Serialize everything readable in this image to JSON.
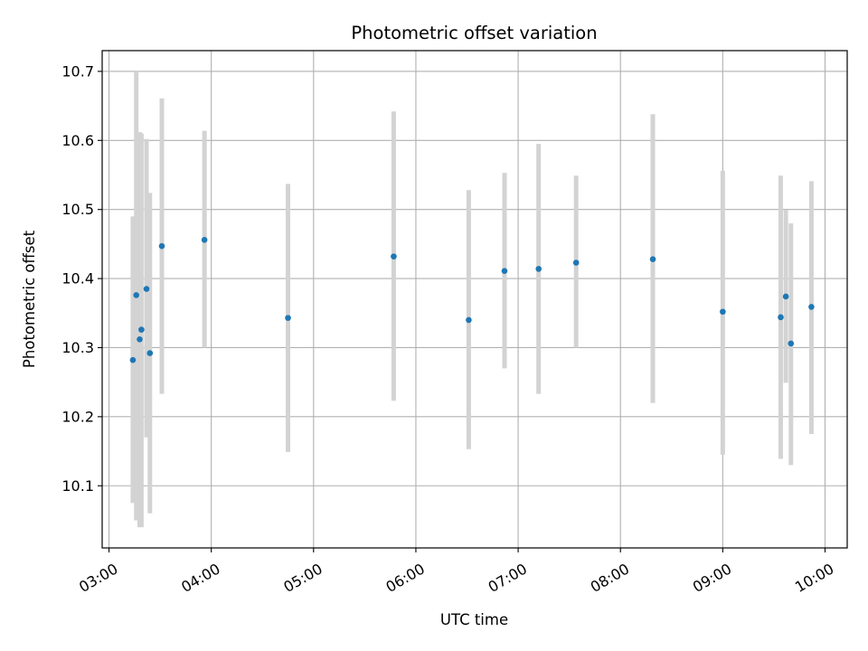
{
  "chart_data": {
    "type": "scatter",
    "title": "Photometric offset variation",
    "xlabel": "UTC time",
    "ylabel": "Photometric offset",
    "x_axis_kind": "time",
    "xlim": [
      "02:56",
      "10:13"
    ],
    "ylim": [
      10.01,
      10.73
    ],
    "x_ticks": [
      "03:00",
      "04:00",
      "05:00",
      "06:00",
      "07:00",
      "08:00",
      "09:00",
      "10:00"
    ],
    "y_ticks": [
      10.1,
      10.2,
      10.3,
      10.4,
      10.5,
      10.6,
      10.7
    ],
    "grid": true,
    "point_color": "#1f77b4",
    "errorbar_color": "#d3d3d3",
    "points": [
      {
        "time": "03:14",
        "y": 10.282,
        "low": 10.075,
        "high": 10.49
      },
      {
        "time": "03:16",
        "y": 10.376,
        "low": 10.05,
        "high": 10.7
      },
      {
        "time": "03:18",
        "y": 10.312,
        "low": 10.04,
        "high": 10.612
      },
      {
        "time": "03:19",
        "y": 10.326,
        "low": 10.04,
        "high": 10.61
      },
      {
        "time": "03:22",
        "y": 10.385,
        "low": 10.17,
        "high": 10.602
      },
      {
        "time": "03:24",
        "y": 10.292,
        "low": 10.06,
        "high": 10.524
      },
      {
        "time": "03:31",
        "y": 10.447,
        "low": 10.233,
        "high": 10.661
      },
      {
        "time": "03:56",
        "y": 10.456,
        "low": 10.3,
        "high": 10.614
      },
      {
        "time": "04:45",
        "y": 10.343,
        "low": 10.149,
        "high": 10.537
      },
      {
        "time": "05:47",
        "y": 10.432,
        "low": 10.223,
        "high": 10.642
      },
      {
        "time": "06:31",
        "y": 10.34,
        "low": 10.153,
        "high": 10.528
      },
      {
        "time": "06:52",
        "y": 10.411,
        "low": 10.27,
        "high": 10.553
      },
      {
        "time": "07:12",
        "y": 10.414,
        "low": 10.233,
        "high": 10.595
      },
      {
        "time": "07:34",
        "y": 10.423,
        "low": 10.3,
        "high": 10.549
      },
      {
        "time": "08:19",
        "y": 10.428,
        "low": 10.22,
        "high": 10.638
      },
      {
        "time": "09:00",
        "y": 10.352,
        "low": 10.145,
        "high": 10.556
      },
      {
        "time": "09:34",
        "y": 10.344,
        "low": 10.139,
        "high": 10.549
      },
      {
        "time": "09:37",
        "y": 10.374,
        "low": 10.249,
        "high": 10.499
      },
      {
        "time": "09:40",
        "y": 10.306,
        "low": 10.13,
        "high": 10.48
      },
      {
        "time": "09:52",
        "y": 10.359,
        "low": 10.175,
        "high": 10.541
      }
    ]
  }
}
